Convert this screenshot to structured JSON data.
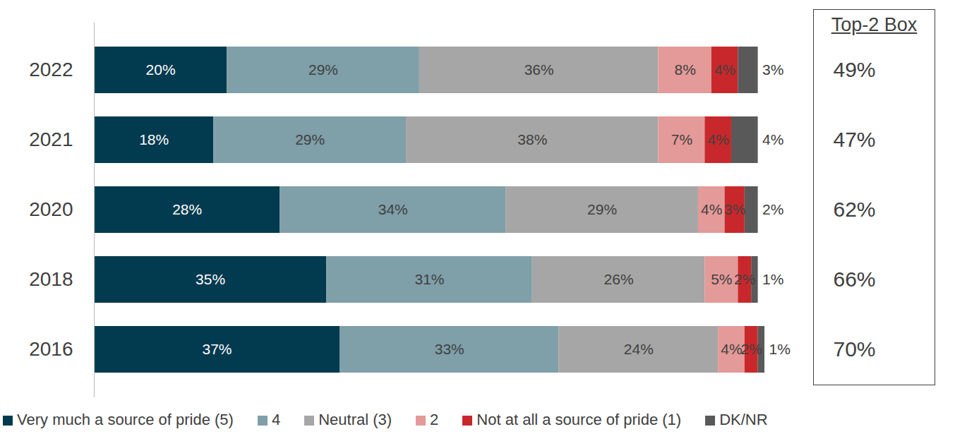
{
  "chart_data": {
    "type": "bar",
    "orientation": "horizontal",
    "stacked": true,
    "data_labels": true,
    "tick_labels": "y",
    "legend": "bottom",
    "categories": [
      "2022",
      "2021",
      "2020",
      "2018",
      "2016"
    ],
    "xlim": [
      0,
      101
    ],
    "series": [
      {
        "name": "Very much a source of pride (5)",
        "color": "#023a4f",
        "values": [
          20,
          18,
          28,
          35,
          37
        ],
        "value_labels": [
          "20%",
          "18%",
          "28%",
          "35%",
          "37%"
        ]
      },
      {
        "name": "4",
        "color": "#7f9fa9",
        "values": [
          29,
          29,
          34,
          31,
          33
        ],
        "value_labels": [
          "29%",
          "29%",
          "34%",
          "31%",
          "33%"
        ]
      },
      {
        "name": "Neutral (3)",
        "color": "#a6a6a6",
        "values": [
          36,
          38,
          29,
          26,
          24
        ],
        "value_labels": [
          "36%",
          "38%",
          "29%",
          "26%",
          "24%"
        ]
      },
      {
        "name": "2",
        "color": "#e39a98",
        "values": [
          8,
          7,
          4,
          5,
          4
        ],
        "value_labels": [
          "8%",
          "7%",
          "4%",
          "5%",
          "4%"
        ]
      },
      {
        "name": "Not at all a source of pride (1)",
        "color": "#c8282b",
        "values": [
          4,
          4,
          3,
          2,
          2
        ],
        "value_labels": [
          "4%",
          "4%",
          "3%",
          "2%",
          "2%"
        ]
      },
      {
        "name": "DK/NR",
        "color": "#595959",
        "values": [
          3,
          4,
          2,
          1,
          1
        ],
        "value_labels": [
          "3%",
          "4%",
          "2%",
          "1%",
          "1%"
        ]
      }
    ],
    "top_2_box": {
      "title": "Top-2 Box",
      "values": [
        49,
        47,
        62,
        66,
        70
      ],
      "value_labels": [
        "49%",
        "47%",
        "62%",
        "66%",
        "70%"
      ]
    }
  }
}
